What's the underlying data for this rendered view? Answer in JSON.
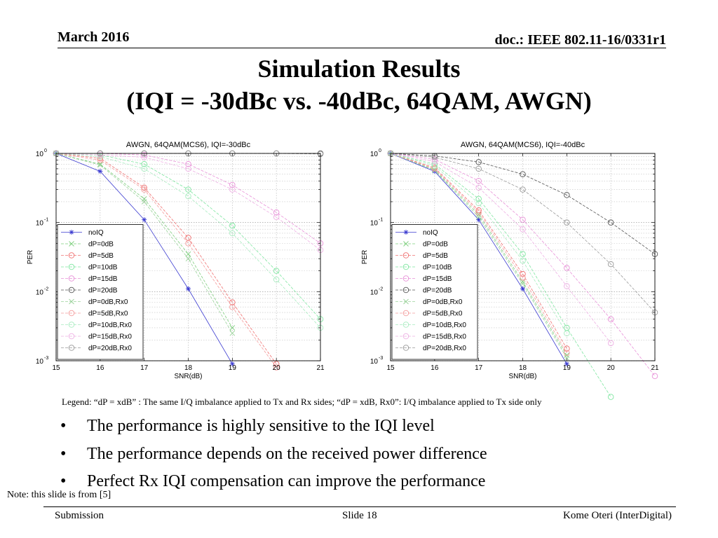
{
  "header": {
    "date": "March 2016",
    "doc": "doc.: IEEE 802.11-16/0331r1"
  },
  "title": {
    "line1": "Simulation Results",
    "line2": "(IQI = -30dBc vs. -40dBc, 64QAM, AWGN)"
  },
  "chart_data": [
    {
      "type": "line",
      "title": "AWGN, 64QAM(MCS6), IQI=-30dBc",
      "xlabel": "SNR(dB)",
      "ylabel": "PER",
      "xlim": [
        15,
        21
      ],
      "ylim": [
        0.001,
        1
      ],
      "yscale": "log",
      "x_ticks": [
        "15",
        "16",
        "17",
        "18",
        "19",
        "20",
        "21"
      ],
      "grid": true,
      "legend_position": "bottom-left",
      "x": [
        15,
        16,
        17,
        18,
        19,
        20,
        21
      ],
      "series": [
        {
          "name": "noIQ",
          "marker": "star",
          "color": "#3b3bd0",
          "values": [
            1.0,
            0.55,
            0.11,
            0.011,
            0.0009,
            null,
            null
          ]
        },
        {
          "name": "dP=0dB",
          "marker": "x",
          "color": "#7fcf7f",
          "values": [
            1.0,
            0.7,
            0.22,
            0.035,
            0.003,
            null,
            null
          ]
        },
        {
          "name": "dP=5dB",
          "marker": "circle",
          "color": "#f07070",
          "values": [
            1.0,
            0.85,
            0.32,
            0.06,
            0.007,
            0.0009,
            null
          ]
        },
        {
          "name": "dP=10dB",
          "marker": "circle",
          "color": "#7fe6a0",
          "values": [
            1.0,
            0.95,
            0.7,
            0.3,
            0.09,
            0.02,
            0.004
          ]
        },
        {
          "name": "dP=15dB",
          "marker": "circle",
          "color": "#e890d8",
          "values": [
            1.0,
            1.0,
            0.95,
            0.7,
            0.35,
            0.14,
            0.05
          ]
        },
        {
          "name": "dP=20dB",
          "marker": "circle",
          "color": "#555555",
          "values": [
            1.0,
            1.0,
            1.0,
            1.0,
            1.0,
            1.0,
            1.0
          ]
        },
        {
          "name": "dP=0dB,Rx0",
          "marker": "x",
          "color": "#9ad29a",
          "values": [
            1.0,
            0.68,
            0.2,
            0.03,
            0.0025,
            null,
            null
          ]
        },
        {
          "name": "dP=5dB,Rx0",
          "marker": "circle",
          "color": "#f49c9c",
          "values": [
            1.0,
            0.8,
            0.3,
            0.05,
            0.006,
            0.0008,
            null
          ]
        },
        {
          "name": "dP=10dB,Rx0",
          "marker": "circle",
          "color": "#a8ecc0",
          "values": [
            1.0,
            0.9,
            0.6,
            0.24,
            0.07,
            0.015,
            0.003
          ]
        },
        {
          "name": "dP=15dB,Rx0",
          "marker": "circle",
          "color": "#eeb0e4",
          "values": [
            1.0,
            0.95,
            0.88,
            0.6,
            0.3,
            0.12,
            0.04
          ]
        },
        {
          "name": "dP=20dB,Rx0",
          "marker": "circle",
          "color": "#999999",
          "values": [
            1.0,
            1.0,
            1.0,
            1.0,
            1.0,
            1.0,
            0.98
          ]
        }
      ]
    },
    {
      "type": "line",
      "title": "AWGN, 64QAM(MCS6), IQI=-40dBc",
      "xlabel": "SNR(dB)",
      "ylabel": "PER",
      "xlim": [
        15,
        21
      ],
      "ylim": [
        0.001,
        1
      ],
      "yscale": "log",
      "x_ticks": [
        "15",
        "16",
        "17",
        "18",
        "19",
        "20",
        "21"
      ],
      "grid": true,
      "legend_position": "bottom-left",
      "x": [
        15,
        16,
        17,
        18,
        19,
        20,
        21
      ],
      "series": [
        {
          "name": "noIQ",
          "marker": "star",
          "color": "#3b3bd0",
          "values": [
            1.0,
            0.55,
            0.11,
            0.011,
            0.0009,
            null,
            null
          ]
        },
        {
          "name": "dP=0dB",
          "marker": "x",
          "color": "#7fcf7f",
          "values": [
            1.0,
            0.58,
            0.13,
            0.014,
            0.0012,
            null,
            null
          ]
        },
        {
          "name": "dP=5dB",
          "marker": "circle",
          "color": "#f07070",
          "values": [
            1.0,
            0.62,
            0.15,
            0.018,
            0.0015,
            null,
            null
          ]
        },
        {
          "name": "dP=10dB",
          "marker": "circle",
          "color": "#7fe6a0",
          "values": [
            1.0,
            0.7,
            0.22,
            0.035,
            0.003,
            0.0003,
            null
          ]
        },
        {
          "name": "dP=15dB",
          "marker": "circle",
          "color": "#e890d8",
          "values": [
            1.0,
            0.82,
            0.4,
            0.11,
            0.022,
            0.004,
            0.0006
          ]
        },
        {
          "name": "dP=20dB",
          "marker": "circle",
          "color": "#555555",
          "values": [
            1.0,
            0.92,
            0.75,
            0.5,
            0.25,
            0.1,
            0.035
          ]
        },
        {
          "name": "dP=0dB,Rx0",
          "marker": "x",
          "color": "#9ad29a",
          "values": [
            1.0,
            0.57,
            0.12,
            0.013,
            0.0011,
            null,
            null
          ]
        },
        {
          "name": "dP=5dB,Rx0",
          "marker": "circle",
          "color": "#f49c9c",
          "values": [
            1.0,
            0.6,
            0.14,
            0.016,
            0.0013,
            null,
            null
          ]
        },
        {
          "name": "dP=10dB,Rx0",
          "marker": "circle",
          "color": "#a8ecc0",
          "values": [
            1.0,
            0.66,
            0.19,
            0.028,
            0.0025,
            null,
            null
          ]
        },
        {
          "name": "dP=15dB,Rx0",
          "marker": "circle",
          "color": "#eeb0e4",
          "values": [
            1.0,
            0.76,
            0.32,
            0.08,
            0.012,
            0.0018,
            null
          ]
        },
        {
          "name": "dP=20dB,Rx0",
          "marker": "circle",
          "color": "#999999",
          "values": [
            1.0,
            0.88,
            0.6,
            0.3,
            0.1,
            0.025,
            0.005
          ]
        }
      ]
    }
  ],
  "legend_note": "Legend:  “dP = xdB” : The same I/Q imbalance applied to Tx and Rx sides;  “dP = xdB, Rx0”: I/Q imbalance applied to Tx side only",
  "bullets": [
    "The performance is highly sensitive to the IQI level",
    "The performance depends on the received power difference",
    "Perfect Rx IQI compensation can improve the performance"
  ],
  "bullet_symbol": "•",
  "note": "Note: this slide is from [5]",
  "footer": {
    "left": "Submission",
    "center": "Slide 18",
    "right": "Kome Oteri (InterDigital)"
  }
}
